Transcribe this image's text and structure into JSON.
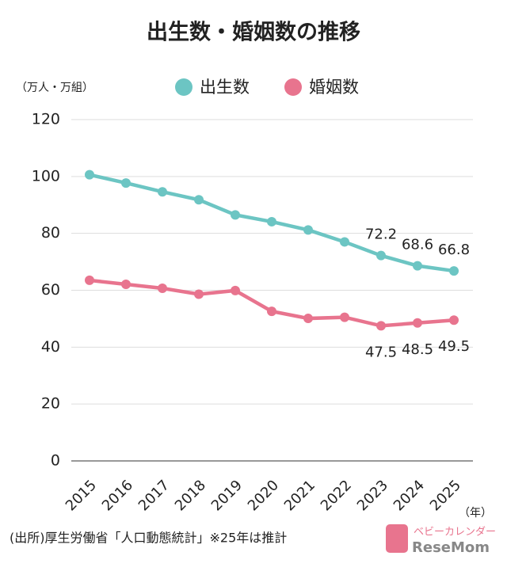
{
  "chart_data": {
    "type": "line",
    "title": "出生数・婚姻数の推移",
    "y_unit": "（万人・万組）",
    "x_unit": "（年）",
    "categories": [
      "2015",
      "2016",
      "2017",
      "2018",
      "2019",
      "2020",
      "2021",
      "2022",
      "2023",
      "2024",
      "2025"
    ],
    "series": [
      {
        "name": "出生数",
        "color": "#6cc5c3",
        "values": [
          100.6,
          97.7,
          94.6,
          91.8,
          86.5,
          84.1,
          81.2,
          77.0,
          72.2,
          68.6,
          66.8
        ],
        "label_points": [
          8,
          9,
          10
        ],
        "label_side": "above"
      },
      {
        "name": "婚姻数",
        "color": "#e8748e",
        "values": [
          63.5,
          62.1,
          60.7,
          58.6,
          59.9,
          52.6,
          50.1,
          50.5,
          47.5,
          48.5,
          49.5
        ],
        "label_points": [
          8,
          9,
          10
        ],
        "label_side": "below"
      }
    ],
    "ylim": [
      0,
      120
    ],
    "yticks": [
      0,
      20,
      40,
      60,
      80,
      100,
      120
    ],
    "grid": true,
    "source": "(出所)厚生労働省「人口動態統計」※25年は推計",
    "logo": {
      "name": "ベビーカレンダー",
      "brand": "ReseMom"
    }
  }
}
